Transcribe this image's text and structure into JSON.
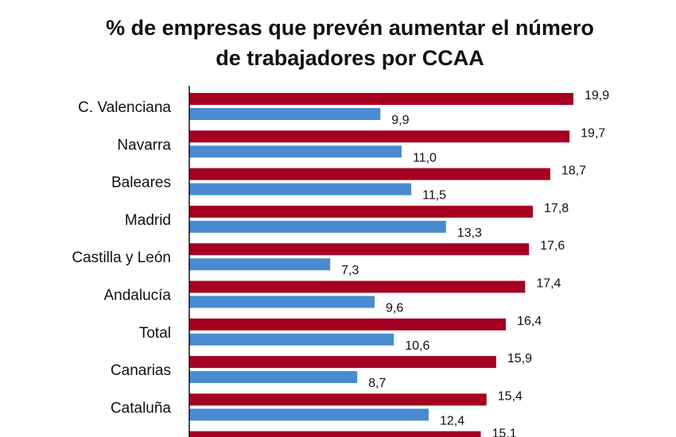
{
  "chart_data": {
    "type": "bar",
    "orientation": "horizontal",
    "title_lines": [
      "% de empresas que prevén aumentar el número",
      "de trabajadores por CCAA"
    ],
    "categories": [
      "C. Valenciana",
      "Navarra",
      "Baleares",
      "Madrid",
      "Castilla y León",
      "Andalucía",
      "Total",
      "Canarias",
      "Cataluña",
      ""
    ],
    "series": [
      {
        "color": "#a50021",
        "values": [
          19.9,
          19.7,
          18.7,
          17.8,
          17.6,
          17.4,
          16.4,
          15.9,
          15.4,
          15.1
        ]
      },
      {
        "color": "#4a8ad0",
        "values": [
          9.9,
          11.0,
          11.5,
          13.3,
          7.3,
          9.6,
          10.6,
          8.7,
          12.4,
          null
        ]
      }
    ],
    "xlim": [
      0,
      20
    ],
    "grid": false,
    "data_labels": true,
    "decimal_separator": ","
  }
}
